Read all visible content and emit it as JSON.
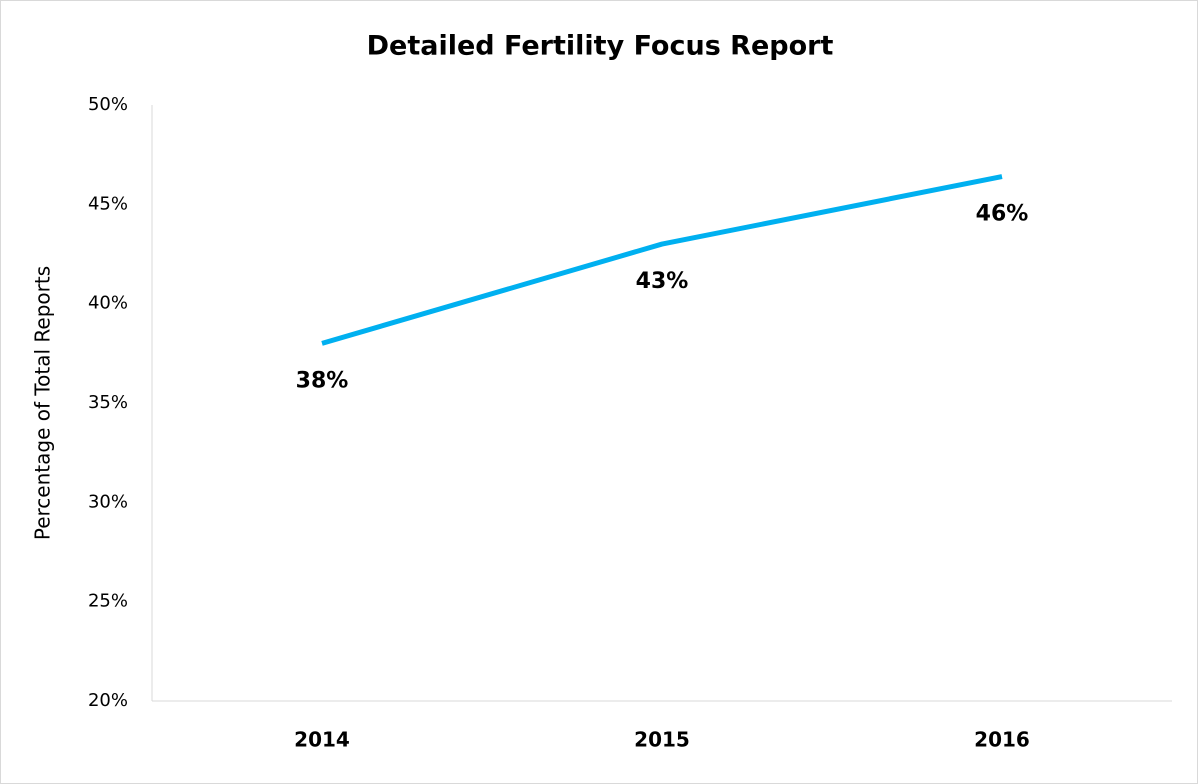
{
  "chart_data": {
    "type": "line",
    "title": "Detailed Fertility Focus Report",
    "y_label": "Percentage of Total Reports",
    "categories": [
      "2014",
      "2015",
      "2016"
    ],
    "series": [
      {
        "color": "#00b0f0",
        "values": [
          38,
          43,
          46.4
        ],
        "value_labels": [
          "38%",
          "43%",
          "46%"
        ]
      }
    ],
    "ylim": [
      20,
      50
    ],
    "yticks": [
      {
        "value": 20,
        "label": "20%"
      },
      {
        "value": 25,
        "label": "25%"
      },
      {
        "value": 30,
        "label": "30%"
      },
      {
        "value": 35,
        "label": "35%"
      },
      {
        "value": 40,
        "label": "40%"
      },
      {
        "value": 45,
        "label": "45%"
      },
      {
        "value": 50,
        "label": "50%"
      }
    ],
    "grid": false
  }
}
